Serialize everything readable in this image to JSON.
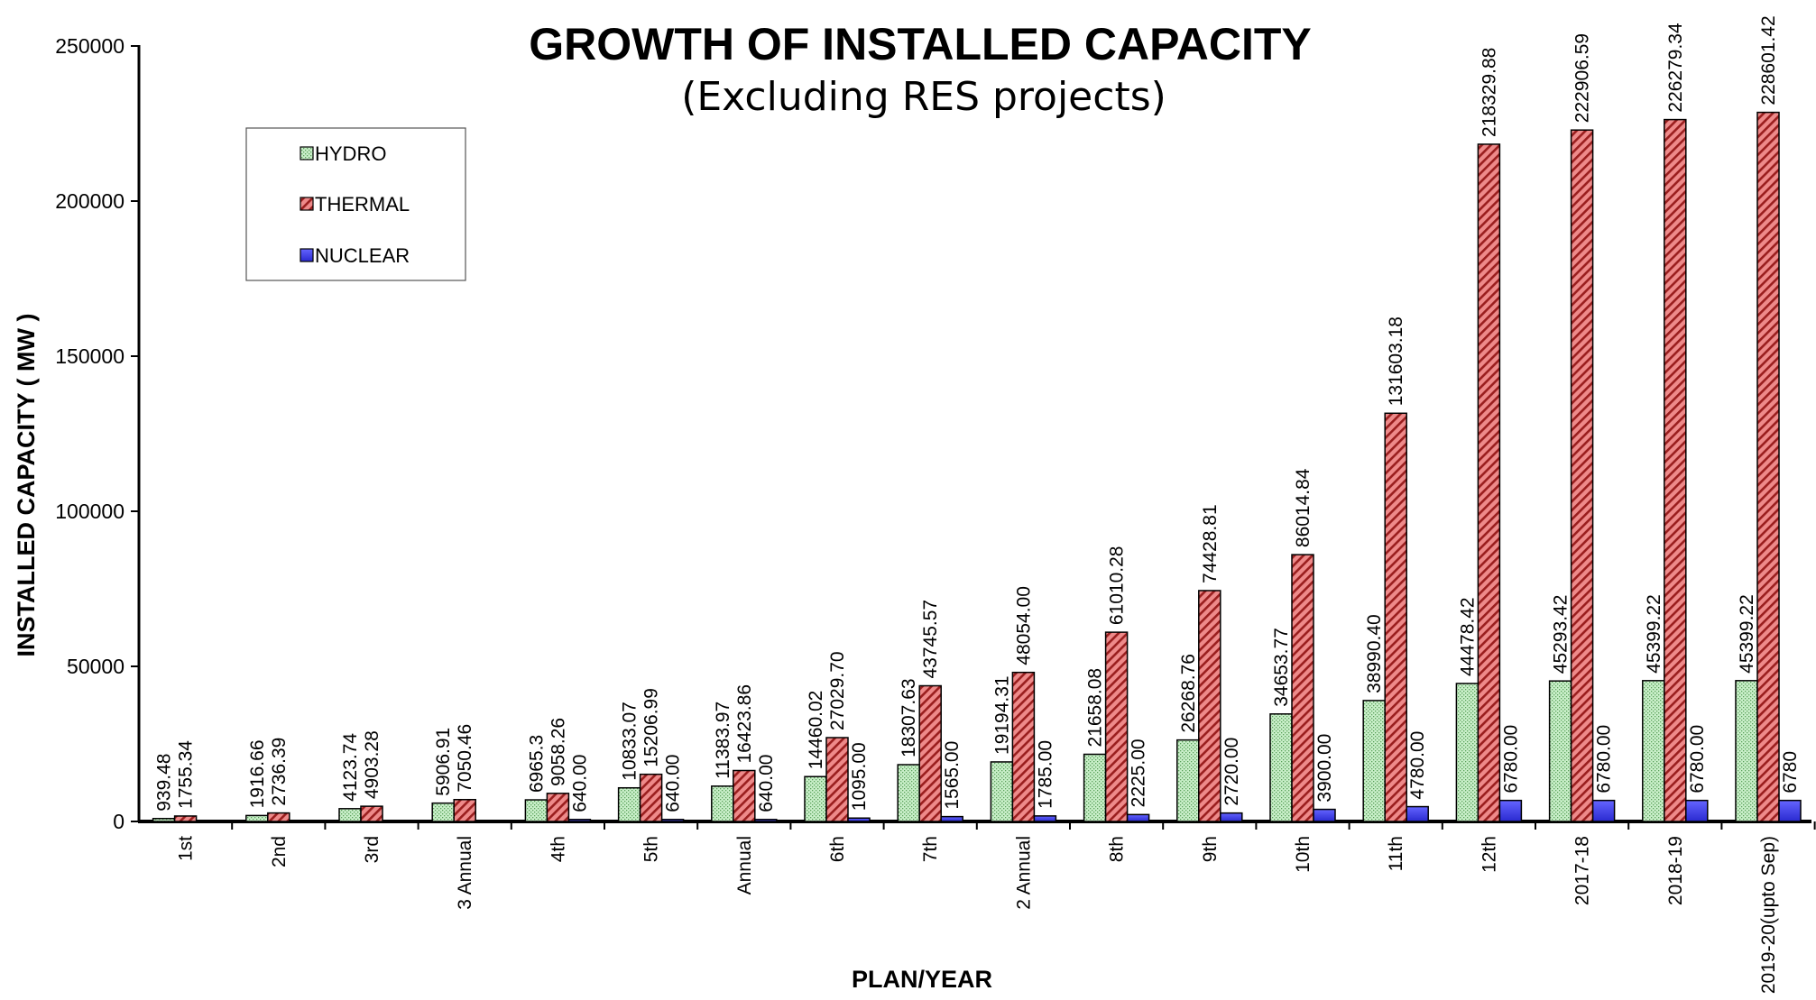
{
  "chart_data": {
    "type": "bar",
    "title": "GROWTH OF INSTALLED CAPACITY",
    "subtitle": "(Excluding RES projects)",
    "xlabel": "PLAN/YEAR",
    "ylabel": "INSTALLED CAPACITY ( MW )",
    "ylim": [
      0,
      250000
    ],
    "yticks": [
      "0",
      "50000",
      "100000",
      "150000",
      "200000",
      "250000"
    ],
    "grid": false,
    "legend_position": "top-left",
    "categories": [
      "1st",
      "2nd",
      "3rd",
      "3 Annual",
      "4th",
      "5th",
      "Annual",
      "6th",
      "7th",
      "2 Annual",
      "8th",
      "9th",
      "10th",
      "11th",
      "12th",
      "2017-18",
      "2018-19",
      "2019-20(upto Sep)"
    ],
    "series": [
      {
        "name": "HYDRO",
        "color": "#b5e5b5",
        "values": [
          939.48,
          1916.66,
          4123.74,
          5906.91,
          6965.3,
          10833.07,
          11383.97,
          14460.02,
          18307.63,
          19194.31,
          21658.08,
          26268.76,
          34653.77,
          38990.4,
          44478.42,
          45293.42,
          45399.22,
          45399.22
        ],
        "labels": [
          "939.48",
          "1916.66",
          "4123.74",
          "5906.91",
          "6965.3",
          "10833.07",
          "11383.97",
          "14460.02",
          "18307.63",
          "19194.31",
          "21658.08",
          "26268.76",
          "34653.77",
          "38990.40",
          "44478.42",
          "45293.42",
          "45399.22",
          "45399.22"
        ]
      },
      {
        "name": "THERMAL",
        "color": "#e06a6a",
        "values": [
          1755.34,
          2736.39,
          4903.28,
          7050.46,
          9058.26,
          15206.99,
          16423.86,
          27029.7,
          43745.57,
          48054.0,
          61010.28,
          74428.81,
          86014.84,
          131603.18,
          218329.88,
          222906.59,
          226279.34,
          228601.42
        ],
        "labels": [
          "1755.34",
          "2736.39",
          "4903.28",
          "7050.46",
          "9058.26",
          "15206.99",
          "16423.86",
          "27029.70",
          "43745.57",
          "48054.00",
          "61010.28",
          "74428.81",
          "86014.84",
          "131603.18",
          "218329.88",
          "222906.59",
          "226279.34",
          "228601.42"
        ]
      },
      {
        "name": "NUCLEAR",
        "color": "#4a4af0",
        "values": [
          0,
          0,
          0,
          0,
          640.0,
          640.0,
          640.0,
          1095.0,
          1565.0,
          1785.0,
          2225.0,
          2720.0,
          3900.0,
          4780.0,
          6780.0,
          6780.0,
          6780.0,
          6780
        ],
        "labels": [
          "",
          "",
          "",
          "",
          "640.00",
          "640.00",
          "640.00",
          "1095.00",
          "1565.00",
          "1785.00",
          "2225.00",
          "2720.00",
          "3900.00",
          "4780.00",
          "6780.00",
          "6780.00",
          "6780.00",
          "6780"
        ]
      }
    ]
  }
}
